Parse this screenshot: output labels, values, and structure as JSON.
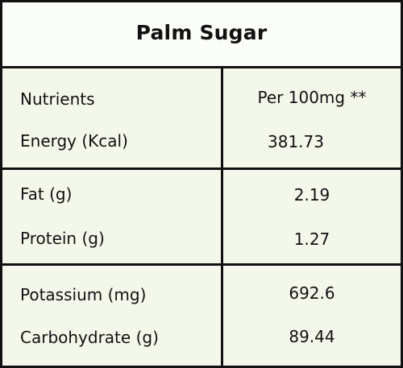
{
  "table": {
    "title": "Palm Sugar",
    "header": {
      "nutrient": "Nutrients",
      "value": "Per 100mg **"
    },
    "rows": [
      {
        "nutrient": "Energy (Kcal)",
        "value": "381.73"
      },
      {
        "nutrient": "Fat (g)",
        "value": "2.19"
      },
      {
        "nutrient": "Protein (g)",
        "value": "1.27"
      },
      {
        "nutrient": "Potassium (mg)",
        "value": "692.6"
      },
      {
        "nutrient": "Carbohydrate (g)",
        "value": "89.44"
      }
    ]
  },
  "colors": {
    "background": "#f3f8ea",
    "border": "#111111",
    "text": "#111111"
  }
}
